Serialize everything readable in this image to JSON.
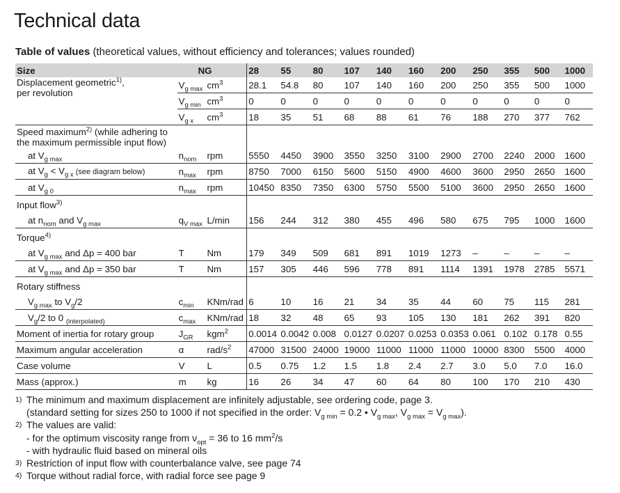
{
  "title": "Technical data",
  "subtitle": {
    "bold": "Table of values",
    "rest": "(theoretical values, without efficiency and tolerances; values rounded)"
  },
  "header": {
    "label": "Size",
    "ng": "NG",
    "sizes": [
      "28",
      "55",
      "80",
      "107",
      "140",
      "160",
      "200",
      "250",
      "355",
      "500",
      "1000"
    ]
  },
  "groups": [
    {
      "label": [
        [
          "Displacement geometric",
          {
            "t": "1)",
            "s": "sup"
          },
          ","
        ],
        "per revolution"
      ],
      "rows": [
        {
          "symbol": [
            "V",
            {
              "t": "g max",
              "s": "sub"
            }
          ],
          "unit": [
            "cm",
            {
              "t": "3",
              "s": "sup"
            }
          ],
          "values": [
            "28.1",
            "54.8",
            "80",
            "107",
            "140",
            "160",
            "200",
            "250",
            "355",
            "500",
            "1000"
          ]
        },
        {
          "symbol": [
            "V",
            {
              "t": "g min",
              "s": "sub"
            }
          ],
          "unit": [
            "cm",
            {
              "t": "3",
              "s": "sup"
            }
          ],
          "values": [
            "0",
            "0",
            "0",
            "0",
            "0",
            "0",
            "0",
            "0",
            "0",
            "0",
            "0"
          ]
        },
        {
          "symbol": [
            "V",
            {
              "t": "g x",
              "s": "sub"
            }
          ],
          "unit": [
            "cm",
            {
              "t": "3",
              "s": "sup"
            }
          ],
          "values": [
            "18",
            "35",
            "51",
            "68",
            "88",
            "61",
            "76",
            "188",
            "270",
            "377",
            "762"
          ]
        }
      ]
    },
    {
      "heading": [
        [
          "Speed maximum",
          {
            "t": "2)",
            "s": "sup"
          },
          " (while adhering to"
        ],
        "the maximum permissible input flow)"
      ],
      "rows": [
        {
          "label": [
            "at V",
            {
              "t": "g max",
              "s": "sub"
            }
          ],
          "symbol": [
            "n",
            {
              "t": "nom",
              "s": "sub"
            }
          ],
          "unit": "rpm",
          "values": [
            "5550",
            "4450",
            "3900",
            "3550",
            "3250",
            "3100",
            "2900",
            "2700",
            "2240",
            "2000",
            "1600"
          ]
        },
        {
          "label": [
            "at V",
            {
              "t": "g",
              "s": "sub"
            },
            " < V",
            {
              "t": "g x",
              "s": "sub"
            },
            {
              "t": " (see diagram below)",
              "s": "small"
            }
          ],
          "symbol": [
            "n",
            {
              "t": "max",
              "s": "sub"
            }
          ],
          "unit": "rpm",
          "values": [
            "8750",
            "7000",
            "6150",
            "5600",
            "5150",
            "4900",
            "4600",
            "3600",
            "2950",
            "2650",
            "1600"
          ]
        },
        {
          "label": [
            "at V",
            {
              "t": "g 0",
              "s": "sub"
            }
          ],
          "symbol": [
            "n",
            {
              "t": "max",
              "s": "sub"
            }
          ],
          "unit": "rpm",
          "values": [
            "10450",
            "8350",
            "7350",
            "6300",
            "5750",
            "5500",
            "5100",
            "3600",
            "2950",
            "2650",
            "1600"
          ]
        }
      ]
    },
    {
      "heading": [
        [
          "Input flow",
          {
            "t": "3)",
            "s": "sup"
          }
        ]
      ],
      "rows": [
        {
          "label": [
            "at n",
            {
              "t": "nom",
              "s": "sub"
            },
            " and V",
            {
              "t": "g max",
              "s": "sub"
            }
          ],
          "symbol": [
            "q",
            {
              "t": "V max",
              "s": "sub"
            }
          ],
          "unit": "L/min",
          "values": [
            "156",
            "244",
            "312",
            "380",
            "455",
            "496",
            "580",
            "675",
            "795",
            "1000",
            "1600"
          ]
        }
      ]
    },
    {
      "heading": [
        [
          "Torque",
          {
            "t": "4)",
            "s": "sup"
          }
        ]
      ],
      "rows": [
        {
          "label": [
            "at V",
            {
              "t": "g max",
              "s": "sub"
            },
            " and Δp = 400 bar"
          ],
          "symbol": "T",
          "unit": "Nm",
          "values": [
            "179",
            "349",
            "509",
            "681",
            "891",
            "1019",
            "1273",
            "–",
            "–",
            "–",
            "–"
          ]
        },
        {
          "label": [
            "at V",
            {
              "t": "g max",
              "s": "sub"
            },
            " and Δp = 350 bar"
          ],
          "symbol": "T",
          "unit": "Nm",
          "values": [
            "157",
            "305",
            "446",
            "596",
            "778",
            "891",
            "1114",
            "1391",
            "1978",
            "2785",
            "5571"
          ]
        }
      ]
    },
    {
      "heading": [
        "Rotary stiffness"
      ],
      "rows": [
        {
          "label": [
            "V",
            {
              "t": "g max",
              "s": "sub"
            },
            " to V",
            {
              "t": "g",
              "s": "sub"
            },
            "/2"
          ],
          "symbol": [
            "c",
            {
              "t": "min",
              "s": "sub"
            }
          ],
          "unit": "KNm/rad",
          "values": [
            "6",
            "10",
            "16",
            "21",
            "34",
            "35",
            "44",
            "60",
            "75",
            "115",
            "281"
          ]
        },
        {
          "label": [
            "V",
            {
              "t": "g",
              "s": "sub"
            },
            "/2 to 0 ",
            {
              "t": "(interpolated)",
              "s": "sub"
            }
          ],
          "symbol": [
            "c",
            {
              "t": "max",
              "s": "sub"
            }
          ],
          "unit": "KNm/rad",
          "values": [
            "18",
            "32",
            "48",
            "65",
            "93",
            "105",
            "130",
            "181",
            "262",
            "391",
            "820"
          ]
        }
      ]
    },
    {
      "label": [
        "Moment of inertia for rotary group"
      ],
      "rows": [
        {
          "symbol": [
            "J",
            {
              "t": "GR",
              "s": "sub"
            }
          ],
          "unit": [
            "kgm",
            {
              "t": "2",
              "s": "sup"
            }
          ],
          "values": [
            "0.0014",
            "0.0042",
            "0.008",
            "0.0127",
            "0.0207",
            "0.0253",
            "0.0353",
            "0.061",
            "0.102",
            "0.178",
            "0.55"
          ]
        }
      ]
    },
    {
      "label": [
        "Maximum angular acceleration"
      ],
      "rows": [
        {
          "symbol": "α",
          "unit": [
            "rad/s",
            {
              "t": "2",
              "s": "sup"
            }
          ],
          "values": [
            "47000",
            "31500",
            "24000",
            "19000",
            "11000",
            "11000",
            "11000",
            "10000",
            "8300",
            "5500",
            "4000"
          ]
        }
      ]
    },
    {
      "label": [
        "Case volume"
      ],
      "rows": [
        {
          "symbol": "V",
          "unit": "L",
          "values": [
            "0.5",
            "0.75",
            "1.2",
            "1.5",
            "1.8",
            "2.4",
            "2.7",
            "3.0",
            "5.0",
            "7.0",
            "16.0"
          ]
        }
      ]
    },
    {
      "label": [
        "Mass (approx.)"
      ],
      "rows": [
        {
          "symbol": "m",
          "unit": "kg",
          "values": [
            "16",
            "26",
            "34",
            "47",
            "60",
            "64",
            "80",
            "100",
            "170",
            "210",
            "430"
          ]
        }
      ]
    }
  ],
  "footnotes": [
    {
      "marker": "1)",
      "lines": [
        "The minimum and maximum displacement are infinitely adjustable, see ordering code, page 3.",
        [
          "(standard setting for sizes 250 to 1000 if not specified in the order: V",
          {
            "t": "g min",
            "s": "sub"
          },
          " = 0.2 • V",
          {
            "t": "g max",
            "s": "sub"
          },
          ", V",
          {
            "t": "g max",
            "s": "sub"
          },
          " = V",
          {
            "t": "g max",
            "s": "sub"
          },
          ")."
        ]
      ]
    },
    {
      "marker": "2)",
      "lines": [
        "The values are valid:",
        [
          "- for the optimum viscosity range from ν",
          {
            "t": "opt",
            "s": "sub"
          },
          " = 36 to 16 mm",
          {
            "t": "2",
            "s": "sup"
          },
          "/s"
        ],
        "- with hydraulic fluid based on mineral oils"
      ]
    },
    {
      "marker": "3)",
      "lines": [
        "Restriction of input flow with counterbalance valve, see page 74"
      ]
    },
    {
      "marker": "4)",
      "lines": [
        "Torque without radial force, with radial force see page 9"
      ]
    }
  ]
}
